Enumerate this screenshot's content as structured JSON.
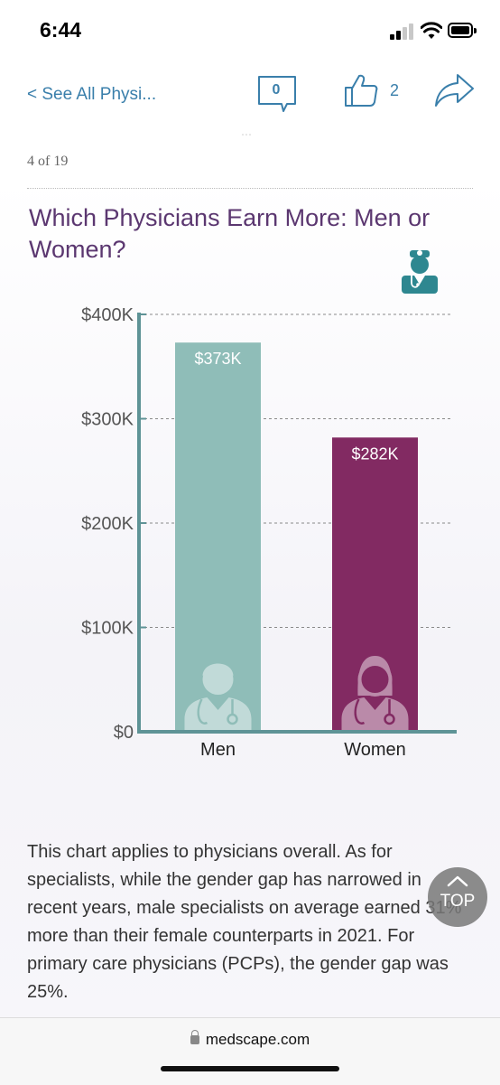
{
  "status": {
    "time": "6:44"
  },
  "toolbar": {
    "back_label": "< See All Physi...",
    "comment_count": "0",
    "like_count": "2"
  },
  "slide": {
    "counter": "4 of 19",
    "title": "Which Physicians Earn More: Men or Women?",
    "body": "This chart applies to physicians overall. As for specialists, while the gender gap has narrowed in recent years, male specialists on average earned 31% more than their female counterparts in 2021. For primary care physicians (PCPs), the gender gap was 25%."
  },
  "chart_data": {
    "type": "bar",
    "categories": [
      "Men",
      "Women"
    ],
    "values": [
      373,
      282
    ],
    "value_labels": [
      "$373K",
      "$282K"
    ],
    "y_ticks": [
      0,
      100,
      200,
      300,
      400
    ],
    "y_tick_labels": [
      "$0",
      "$100K",
      "$200K",
      "$300K",
      "$400K"
    ],
    "ylim": [
      0,
      400
    ],
    "grid": true,
    "colors": [
      "#8fbdb8",
      "#822a62"
    ],
    "axis_color": "#5e9396"
  },
  "top_button": {
    "label": "TOP"
  },
  "url_bar": {
    "domain": "medscape.com"
  },
  "colors": {
    "accent": "#3a7fab",
    "title": "#5b3770"
  }
}
